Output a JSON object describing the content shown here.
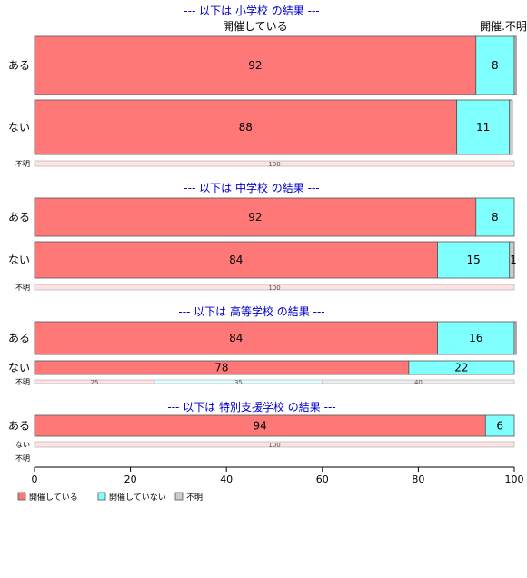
{
  "chart_data": {
    "type": "bar",
    "orientation": "horizontal",
    "stacked": true,
    "xlim": [
      0,
      100
    ],
    "x_ticks": [
      0,
      20,
      40,
      60,
      80,
      100
    ],
    "legend": {
      "placement": "bottom-left",
      "entries": [
        {
          "label": "開催している",
          "color": "#ff7878"
        },
        {
          "label": "開催していない",
          "color": "#80ffff"
        },
        {
          "label": "不明",
          "color": "#cccccc"
        }
      ]
    },
    "top_labels": [
      "開催している",
      "開催.不明"
    ],
    "colors": [
      "#ff7878",
      "#80ffff",
      "#cccccc"
    ],
    "groups": [
      {
        "title": "--- 以下は 小学校 の結果 ---",
        "rows": [
          {
            "label": "ある",
            "values": [
              92,
              8,
              0.4
            ],
            "value_labels": [
              "92",
              "8",
              ""
            ]
          },
          {
            "label": "ない",
            "values": [
              88,
              11,
              0.6
            ],
            "value_labels": [
              "88",
              "11",
              ""
            ]
          },
          {
            "label": "不明",
            "values": [
              100,
              0,
              0
            ],
            "value_labels": [
              "100",
              "",
              ""
            ]
          }
        ]
      },
      {
        "title": "--- 以下は 中学校 の結果 ---",
        "rows": [
          {
            "label": "ある",
            "values": [
              92,
              8,
              0
            ],
            "value_labels": [
              "92",
              "8",
              ""
            ]
          },
          {
            "label": "ない",
            "values": [
              84,
              15,
              1
            ],
            "value_labels": [
              "84",
              "15",
              "1"
            ]
          },
          {
            "label": "不明",
            "values": [
              100,
              0,
              0
            ],
            "value_labels": [
              "100",
              "",
              ""
            ]
          }
        ]
      },
      {
        "title": "--- 以下は 高等学校 の結果 ---",
        "rows": [
          {
            "label": "ある",
            "values": [
              84,
              16,
              0.4
            ],
            "value_labels": [
              "84",
              "16",
              ""
            ]
          },
          {
            "label": "ない",
            "values": [
              78,
              22,
              0
            ],
            "value_labels": [
              "78",
              "22",
              ""
            ]
          },
          {
            "label": "不明",
            "values": [
              25,
              35,
              40
            ],
            "value_labels": [
              "25",
              "35",
              "40"
            ]
          }
        ]
      },
      {
        "title": "--- 以下は 特別支援学校 の結果 ---",
        "rows": [
          {
            "label": "ある",
            "values": [
              94,
              6,
              0
            ],
            "value_labels": [
              "94",
              "6",
              ""
            ]
          },
          {
            "label": "ない",
            "values": [
              100,
              0,
              0
            ],
            "value_labels": [
              "100",
              "",
              ""
            ]
          },
          {
            "label": "不明",
            "values": [
              0,
              0,
              0
            ],
            "value_labels": [
              "",
              "",
              ""
            ]
          }
        ]
      }
    ]
  }
}
